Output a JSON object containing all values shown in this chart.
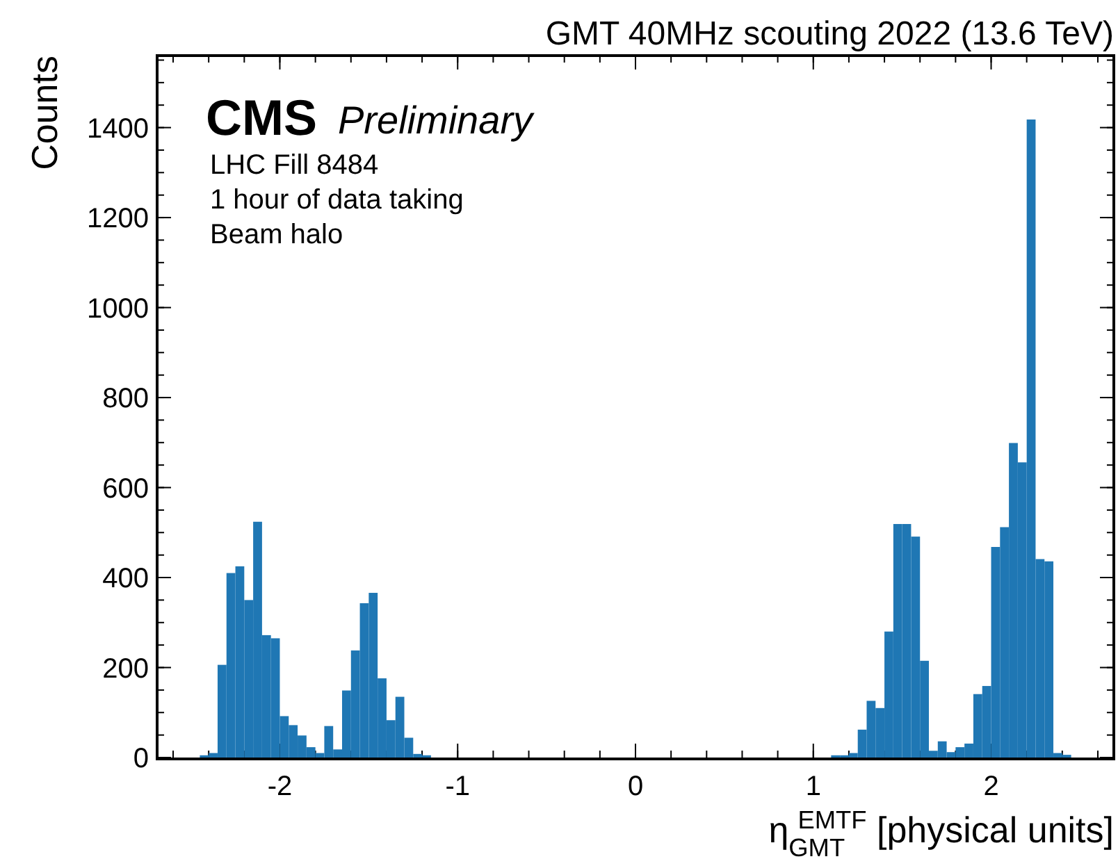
{
  "chart_data": {
    "type": "histogram",
    "title": "GMT 40MHz scouting 2022 (13.6 TeV)",
    "xlabel": "η$_{GMT}$$^{EMTF}$ [physical units]",
    "ylabel": "Counts",
    "annotations": [
      "CMS",
      "Preliminary",
      "LHC Fill 8484",
      "1 hour of data taking",
      "Beam halo"
    ],
    "bins": [
      -2.45,
      -2.4,
      -2.35,
      -2.3,
      -2.25,
      -2.2,
      -2.15,
      -2.1,
      -2.05,
      -2,
      -1.95,
      -1.9,
      -1.85,
      -1.8,
      -1.75,
      -1.7,
      -1.65,
      -1.6,
      -1.55,
      -1.5,
      -1.45,
      -1.4,
      -1.35,
      -1.3,
      -1.25,
      -1.2,
      -1.15,
      -1.1,
      -1.05,
      -1,
      -0.95,
      -0.9,
      -0.85,
      -0.8,
      -0.75,
      -0.7,
      -0.65,
      -0.6,
      -0.55,
      -0.5,
      -0.45,
      -0.4,
      -0.35,
      -0.3,
      -0.25,
      -0.2,
      -0.15,
      -0.1,
      -0.05,
      0,
      0.05,
      0.1,
      0.15,
      0.2,
      0.25,
      0.3,
      0.35,
      0.4,
      0.45,
      0.5,
      0.55,
      0.6,
      0.65,
      0.7,
      0.75,
      0.8,
      0.85,
      0.9,
      0.95,
      1,
      1.05,
      1.1,
      1.15,
      1.2,
      1.25,
      1.3,
      1.35,
      1.4,
      1.45,
      1.5,
      1.55,
      1.6,
      1.65,
      1.7,
      1.75,
      1.8,
      1.85,
      1.9,
      1.95,
      2,
      2.05,
      2.1,
      2.15,
      2.2,
      2.25,
      2.3,
      2.35,
      2.4,
      2.45
    ],
    "values": [
      5,
      10,
      206,
      410,
      425,
      350,
      524,
      272,
      265,
      92,
      72,
      49,
      23,
      10,
      70,
      18,
      149,
      238,
      343,
      366,
      176,
      83,
      135,
      44,
      8,
      5,
      0,
      0,
      0,
      0,
      0,
      0,
      0,
      0,
      0,
      0,
      0,
      0,
      0,
      0,
      0,
      0,
      0,
      0,
      0,
      0,
      0,
      0,
      0,
      0,
      0,
      0,
      0,
      0,
      0,
      0,
      0,
      0,
      0,
      0,
      0,
      0,
      0,
      0,
      0,
      0,
      0,
      0,
      0,
      0,
      0,
      5,
      5,
      10,
      62,
      126,
      110,
      280,
      519,
      519,
      491,
      215,
      15,
      36,
      12,
      23,
      31,
      141,
      159,
      468,
      512,
      699,
      656,
      1418,
      441,
      436,
      10,
      6
    ],
    "color": "#1f77b4",
    "xlim": [
      -2.69,
      2.69
    ],
    "xticks": [
      -2,
      -1,
      0,
      1,
      2
    ],
    "ylim": [
      0,
      1560
    ],
    "yticks": [
      0,
      200,
      400,
      600,
      800,
      1000,
      1200,
      1400
    ]
  }
}
